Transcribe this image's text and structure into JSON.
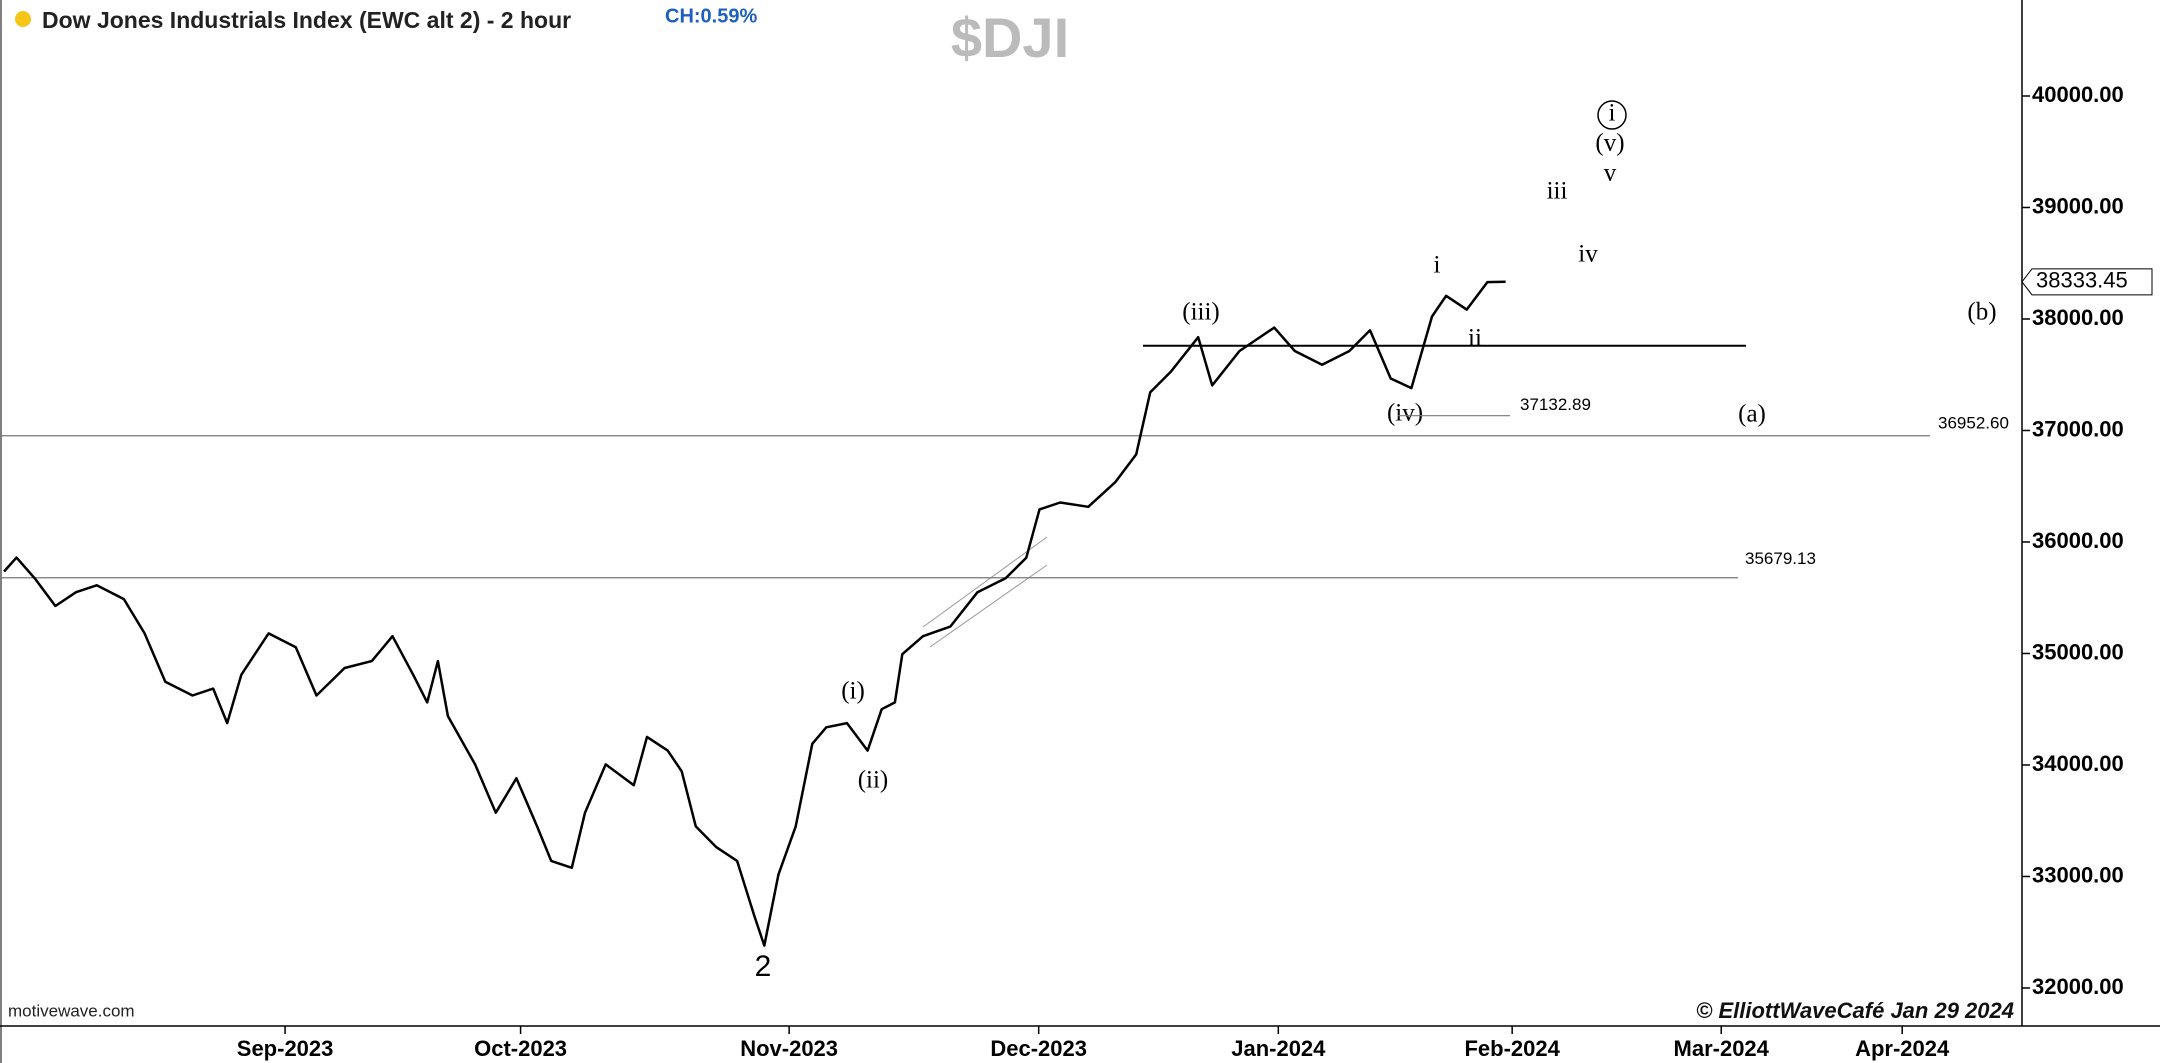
{
  "chart_data": {
    "type": "line",
    "title": "Dow Jones Industrials Index (EWC alt 2) - 2 hour",
    "change": "CH:0.59%",
    "symbol": "$DJI",
    "source": "motivewave.com",
    "credit": "© ElliottWaveCafé Jan 29 2024",
    "color": "#000000",
    "x": [
      0.5,
      2,
      4.2,
      6.7,
      9.2,
      11.7,
      15,
      17.5,
      20,
      23.3,
      25.8,
      27.5,
      29.2,
      32.5,
      35.8,
      38.3,
      41.7,
      45,
      47.5,
      50,
      51.7,
      53,
      54.2,
      57.5,
      60,
      62.5,
      65,
      66.7,
      69.2,
      70.8,
      73.3,
      76.7,
      78.3,
      80.8,
      82.5,
      84.2,
      86.7,
      89.2,
      91.3,
      92.5,
      94.2,
      96.3,
      98.3,
      100,
      102.5,
      105,
      106.7,
      108.3,
      109.2,
      111.7,
      115,
      118.3,
      121.7,
      124.2,
      125.8,
      128.3,
      131.7,
      135,
      137.5,
      139.2,
      141.7,
      145,
      146.7,
      150,
      154.2,
      156.7,
      160,
      163.3,
      165.8,
      168.3,
      170.8,
      173.3,
      175,
      177.5,
      180,
      182.2
    ],
    "values": [
      35735,
      35860,
      35674,
      35426,
      35550,
      35612,
      35488,
      35180,
      34747,
      34623,
      34685,
      34376,
      34809,
      35180,
      35056,
      34623,
      34870,
      34932,
      35155,
      34809,
      34561,
      34932,
      34438,
      34005,
      33572,
      33881,
      33449,
      33140,
      33078,
      33572,
      34005,
      33819,
      34252,
      34129,
      33943,
      33449,
      33263,
      33140,
      32645,
      32380,
      33016,
      33449,
      34190,
      34338,
      34376,
      34129,
      34500,
      34561,
      34994,
      35155,
      35241,
      35550,
      35674,
      35859,
      36292,
      36354,
      36316,
      36539,
      36786,
      37342,
      37528,
      37837,
      37404,
      37713,
      37923,
      37713,
      37590,
      37713,
      37899,
      37466,
      37380,
      38022,
      38208,
      38084,
      38331,
      38333.45
    ],
    "xlim": [
      0,
      244.7
    ],
    "xticks": [
      {
        "value": 34.5,
        "label": "Sep-2023"
      },
      {
        "value": 63,
        "label": "Oct-2023"
      },
      {
        "value": 95.5,
        "label": "Nov-2023"
      },
      {
        "value": 125.7,
        "label": "Dec-2023"
      },
      {
        "value": 154.7,
        "label": "Jan-2024"
      },
      {
        "value": 183,
        "label": "Feb-2024"
      },
      {
        "value": 208.3,
        "label": "Mar-2024"
      },
      {
        "value": 230.2,
        "label": "Apr-2024"
      }
    ],
    "ylim": [
      31659,
      40861
    ],
    "yticks": [
      {
        "value": 32000,
        "label": "32000.00"
      },
      {
        "value": 33000,
        "label": "33000.00"
      },
      {
        "value": 34000,
        "label": "34000.00"
      },
      {
        "value": 35000,
        "label": "35000.00"
      },
      {
        "value": 36000,
        "label": "36000.00"
      },
      {
        "value": 37000,
        "label": "37000.00"
      },
      {
        "value": 38000,
        "label": "38000.00"
      },
      {
        "value": 39000,
        "label": "39000.00"
      },
      {
        "value": 40000,
        "label": "40000.00"
      }
    ],
    "levels": [
      {
        "value": 37132.89,
        "label": "37132.89"
      },
      {
        "value": 36952.6,
        "label": "36952.60"
      },
      {
        "value": 35679.13,
        "label": "35679.13"
      }
    ],
    "resistance": 37760,
    "wave_labels": [
      "2",
      "(i)",
      "(ii)",
      "(iii)",
      "(iv)",
      "i",
      "ii",
      "iii",
      "iv",
      "v",
      "(v)",
      "i",
      "(a)",
      "(b)"
    ]
  }
}
